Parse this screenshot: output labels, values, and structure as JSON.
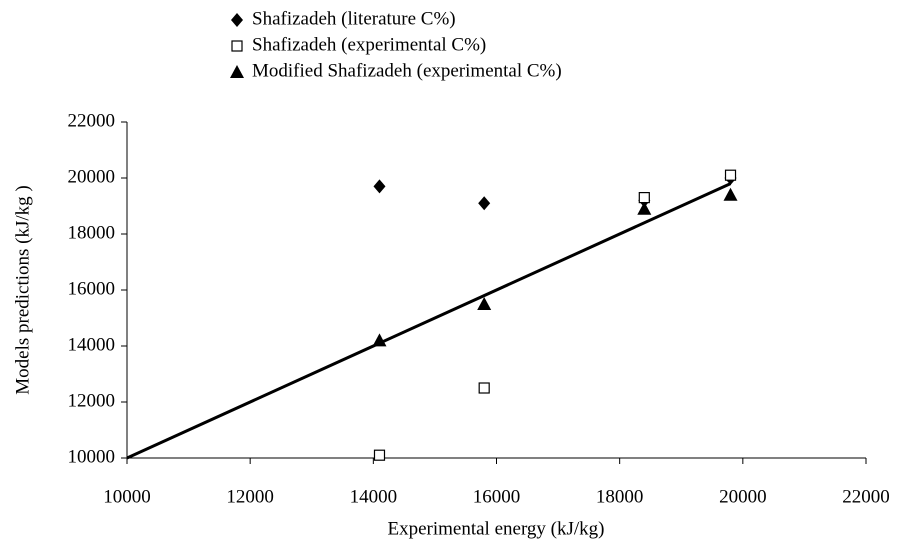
{
  "chart_data": {
    "type": "scatter",
    "x_label": "Experimental energy (kJ/kg)",
    "y_label": "Models predictions  (kJ/kg )",
    "xlim": [
      10000,
      22000
    ],
    "xticks": [
      10000,
      12000,
      14000,
      16000,
      18000,
      20000,
      22000
    ],
    "ylim": [
      10000,
      22000
    ],
    "yticks": [
      10000,
      12000,
      14000,
      16000,
      18000,
      20000,
      22000
    ],
    "grid": false,
    "legend": "top",
    "series": [
      {
        "name": "Shafizadeh (literature C%)",
        "color": "#000000",
        "marker": "diamond",
        "x": [
          14100,
          15800,
          18400,
          19800
        ],
        "values": [
          19700,
          19100,
          19200,
          20000
        ]
      },
      {
        "name": "Shafizadeh (experimental C%)",
        "color": "#000000",
        "marker": "square-open",
        "x": [
          14100,
          15800,
          18400,
          19800
        ],
        "values": [
          10100,
          12500,
          19300,
          20100
        ]
      },
      {
        "name": "Modified Shafizadeh (experimental C%)",
        "color": "#000000",
        "marker": "triangle",
        "x": [
          14100,
          15800,
          18400,
          19800
        ],
        "values": [
          14200,
          15500,
          18900,
          19400
        ]
      }
    ],
    "fit_line": {
      "color": "#000000",
      "x": [
        10000,
        19800
      ],
      "values": [
        10000,
        19800
      ]
    }
  }
}
